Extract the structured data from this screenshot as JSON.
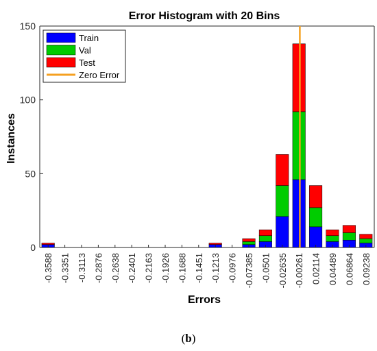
{
  "caption": {
    "open": "(",
    "letter": "b",
    "close": ")"
  },
  "colors": {
    "train": "#0000ff",
    "val": "#00cc00",
    "test": "#ff0000",
    "zero_error": "#f5a020"
  },
  "chart_data": {
    "type": "bar",
    "stacked": true,
    "title": "Error Histogram with 20 Bins",
    "xlabel": "Errors",
    "ylabel": "Instances",
    "ylim": [
      0,
      150
    ],
    "yticks": [
      0,
      50,
      100,
      150
    ],
    "categories": [
      "-0.3588",
      "-0.3351",
      "-0.3113",
      "-0.2876",
      "-0.2638",
      "-0.2401",
      "-0.2163",
      "-0.1926",
      "-0.1688",
      "-0.1451",
      "-0.1213",
      "-0.0976",
      "-0.07385",
      "-0.0501",
      "-0.02635",
      "-0.00261",
      "0.02114",
      "0.04489",
      "0.06864",
      "0.09238"
    ],
    "series": [
      {
        "name": "Train",
        "values": [
          2,
          0,
          0,
          0,
          0,
          0,
          0,
          0,
          0,
          0,
          2,
          0,
          2,
          4,
          21,
          46,
          14,
          4,
          5,
          3
        ]
      },
      {
        "name": "Val",
        "values": [
          0,
          0,
          0,
          0,
          0,
          0,
          0,
          0,
          0,
          0,
          0,
          0,
          2,
          4,
          21,
          46,
          13,
          4,
          5,
          3
        ]
      },
      {
        "name": "Test",
        "values": [
          1,
          0,
          0,
          0,
          0,
          0,
          0,
          0,
          0,
          0,
          1,
          0,
          2,
          4,
          21,
          46,
          15,
          4,
          5,
          3
        ]
      }
    ],
    "zero_error": {
      "name": "Zero Error",
      "x_category": "-0.00261",
      "offset": 0.55
    },
    "legend": {
      "position": "top-left"
    },
    "grid": false
  }
}
